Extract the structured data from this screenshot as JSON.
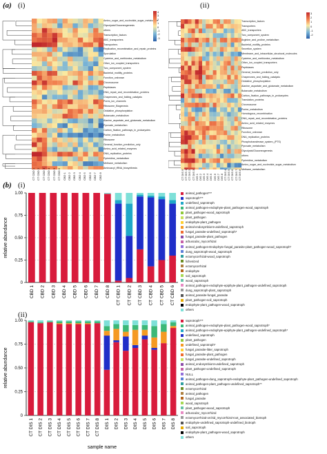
{
  "figure": {
    "label_a": "(a)",
    "label_b": "(b)",
    "sub_i": "(i)",
    "sub_ii": "(ii)"
  },
  "heatmap_i": {
    "rows": [
      "Amino_sugar_and_nucleotide_sugar_metabolism",
      "Glycolysis/Gluconeogenesis",
      "others",
      "Transcription_factors",
      "ABC_transporters",
      "Transporters",
      "Replication_recombination_and_repair_proteins",
      "Sporulation",
      "Cysteine_and_methionine_metabolism",
      "Other_ion_coupled_transporters",
      "Two_component_system",
      "Bacterial_motility_proteins",
      "Function_unknown",
      "Chromosome",
      "Peptidases",
      "DNA_repair_and_recombination_proteins",
      "Chaperones_and_folding_catalysis",
      "Pores_ion_channels",
      "Ribosome_Biogenesis",
      "Oxidative_phosphorylation",
      "Butanoate_metabolism",
      "Alanine_aspartate_and_glutamate_metabolism",
      "Pyruvate_metabolism",
      "Carbon_fixation_pathways_in_prokaryotes",
      "Purine_metabolism",
      "Ribosome",
      "General_function_prediction_only",
      "Amino_acid_related_enzymes",
      "DNA_replication_proteins",
      "Pyrimidine_metabolism",
      "Methane_metabolism",
      "Aminoacyl_tRNA_biosynthesis"
    ],
    "cols": [
      "CT CBD 1",
      "CT CBD 2",
      "CT CBD 3",
      "CT CBD 4",
      "CT CBD 5",
      "CT CBD 6",
      "CBD 1",
      "CBD 2",
      "CBD 3",
      "CBD 4",
      "CBD 5",
      "CBD 6",
      "CBD 7",
      "CBD 8"
    ],
    "legend_ticks": [
      "4",
      "3",
      "2",
      "1",
      "0",
      "-1",
      "-2",
      "-3"
    ]
  },
  "heatmap_ii": {
    "rows": [
      "Transcription_factors",
      "Transporters",
      "ABC_transporters",
      "Two_component_system",
      "Arginine_and_proline_metabolism",
      "Bacterial_motility_proteins",
      "Secretion_system",
      "Membrane_and_intracellular_structural_molecules",
      "Cysteine_and_methionine_metabolism",
      "Other_ion_coupled_transporters",
      "Peptidases",
      "General_function_prediction_only",
      "Chaperones_and_folding_catalysis",
      "Oxidative_phosphorylation",
      "Alanine_aspartate_and_glutamate_metabolism",
      "Butanoate_metabolism",
      "Carbon_fixation_pathways_in_prokaryotes",
      "Translation_proteins",
      "Chromosome",
      "Purine_metabolism",
      "Homologous_recombination",
      "DNA_repair_and_recombination_proteins",
      "Amino_acid_related_enzymes",
      "Ribosome",
      "Function_unknown",
      "DNA_replication_proteins",
      "Phosphotransferase_system_(PTS)",
      "Pyruvate_metabolism",
      "Glycolysis/Gluconeogenesis",
      "others",
      "Pyrimidine_metabolism",
      "Amino_sugar_and_nucleotide_sugar_metabolism",
      "Methane_metabolism"
    ],
    "cols": [
      "CT DIS 9",
      "CT DIS 1",
      "CT DIS 2",
      "CT DIS 3",
      "DIS 1",
      "DIS 2",
      "DIS 3",
      "DIS 4",
      "DIS 5",
      "DIS 6",
      "DIS 7",
      "DIS 8",
      "CT DIS 4",
      "CT DIS 5",
      "CT DIS 6",
      "CT DIS 7",
      "CT DIS 8"
    ],
    "legend_ticks": [
      "3",
      "2",
      "1",
      "0",
      "-1",
      "-2"
    ]
  },
  "chart_data": [
    {
      "type": "bar",
      "panel": "(i)",
      "ylabel": "relative abundance",
      "ylim": [
        0,
        1.0
      ],
      "yticks": [
        "0",
        "0.25",
        "0.50",
        "0.75",
        "1.00"
      ],
      "categories": [
        "CBD 1",
        "CBD 2",
        "CBD 3",
        "CBD 4",
        "CBD 5",
        "CBD 6",
        "CBD 7",
        "CBD 8",
        "CT CBD 1",
        "CT CBD 2",
        "CT CBD 3",
        "CT CBD 4",
        "CT CBD 5",
        "CT CBD 6"
      ],
      "legend": [
        "animal_pathogen***",
        "saprotroph***",
        "undefined_saprotroph",
        "animal_pathogen-endophyte-plant_pathogen-wood_saprotroph",
        "plant_pathogen-wood_saprotroph",
        "plant_pathogen",
        "endophyte-plant_pathogen",
        "animal-endosymbiont-undefined_saprotroph",
        "fungal_parasite-undefined_saprotroph*",
        "fungal_parasite-plant_pathogen",
        "arbuscular_mycorrhizal",
        "animal_pathogen-Endophyte-fungal_parasite-plant_pathogen-wood_saprotroph*",
        "dung_saprotroph-wood_saprotroph",
        "ectomycorrhizal-wood_saprotroph",
        "lichenized",
        "ectomycorrhizal",
        "endophyte",
        "soil_saprotroph",
        "wood_saprotroph",
        "animal_pathogen-endophyte-epiphyte-plant_pathogen-undefined_saprotroph",
        "dung_saprotroph-plant_saprotroph",
        "animal_parasite-fungal_parasite",
        "plant_pathogen-soil_saprotroph",
        "endophyte-plant_pathogen-wood_saprotroph",
        "others"
      ],
      "colors": [
        "#d81b3c",
        "#1f2ec8",
        "#1fa8c8",
        "#3cb878",
        "#8fc93a",
        "#c7e05a",
        "#ffcf2e",
        "#f59a23",
        "#ef6c2f",
        "#8b4ba8",
        "#c65fa8",
        "#9370db",
        "#5c7fd9",
        "#2e9e9e",
        "#6b8e23",
        "#ad7f3f",
        "#b5651d",
        "#a6d854",
        "#66c2a5",
        "#e78ac3",
        "#999999",
        "#555555",
        "#e6ab02",
        "#000000",
        "#7ee0d8"
      ],
      "series": [
        {
          "name": "animal_pathogen***",
          "values": [
            1,
            1,
            1,
            1,
            1,
            1,
            1,
            0.99,
            0.02,
            0.05,
            0.37,
            0.18,
            0.25,
            0.3
          ]
        },
        {
          "name": "saprotroph***",
          "values": [
            0,
            0,
            0,
            0,
            0,
            0,
            0,
            0,
            0.86,
            0.47,
            0.59,
            0.77,
            0.68,
            0.58
          ]
        },
        {
          "name": "undefined_saprotroph",
          "values": [
            0,
            0,
            0,
            0,
            0,
            0,
            0,
            0,
            0.04,
            0.36,
            0.02,
            0.02,
            0.03,
            0.04
          ]
        },
        {
          "name": "others",
          "values": [
            0,
            0,
            0,
            0,
            0,
            0,
            0,
            0.01,
            0.08,
            0.12,
            0.02,
            0.03,
            0.04,
            0.08
          ]
        }
      ]
    },
    {
      "type": "bar",
      "panel": "(ii)",
      "ylabel": "relative abundance",
      "xlabel": "sample name",
      "ylim": [
        0,
        1.0
      ],
      "yticks": [
        "0",
        "0.25",
        "0.50",
        "0.75",
        "1.00"
      ],
      "categories": [
        "CT DIS 1",
        "CT DIS 2",
        "CT DIS 3",
        "CT DIS 4",
        "CT DIS 5",
        "CT DIS 6",
        "CT DIS 7",
        "CT DIS 8",
        "DIS 1",
        "DIS 2",
        "DIS 3",
        "DIS 4",
        "DIS 5",
        "DIS 6",
        "DIS 7",
        "DIS 8"
      ],
      "legend": [
        "saprotroph***",
        "animal_pathogen-endophyte-plant_pathogen-wood_saprotroph*",
        "animal_pathogen-endophyte-epiphyte-plant_pathogen-undefined_saprotroph*",
        "undefined_saprotroph",
        "plant_pathogen",
        "undefined_saprotroph*",
        "fungal_parasite-litter_saprotroph",
        "fungal_parasite-plant_pathogen",
        "fungal_parasite-undefined_saprotroph",
        "animal_endosymbiont-undefined_saprotroph",
        "plant_pathogen-undefined_saprotroph",
        "NULL",
        "animal_pathogen-dung_saprotroph-endophyte-plant_pathogen-undefined_saprotroph",
        "animal_pathogen-plant_pathogen-undefined_saprotroph**",
        "ectomycorrhizal",
        "animal_pathogen",
        "fungal_parasite",
        "wood_saprotroph",
        "plant_pathogen-wood_saprotroph",
        "arbuscular_mycorrhizal",
        "ectomycorrhizal-orchid_mycorrhizal-root_associated_biotroph",
        "endophyte-undefined_saprotroph-undefined_biotroph",
        "soil_saprotroph",
        "endophyte-plant_pathogen-wood_saprotroph",
        "others"
      ],
      "colors": [
        "#d81b3c",
        "#3cb878",
        "#1fa8c8",
        "#1f2ec8",
        "#8fc93a",
        "#f59a23",
        "#ffcf2e",
        "#ef6c2f",
        "#c7e05a",
        "#8b4ba8",
        "#c65fa8",
        "#9370db",
        "#5c7fd9",
        "#2e9e9e",
        "#6b8e23",
        "#ad7f3f",
        "#b5651d",
        "#a6d854",
        "#66c2a5",
        "#e78ac3",
        "#999999",
        "#555555",
        "#e6ab02",
        "#000000",
        "#7ee0d8"
      ],
      "series": [
        {
          "name": "saprotroph***",
          "values": [
            0.98,
            0.97,
            0.98,
            0.96,
            0.96,
            0.96,
            0.96,
            0.97,
            0.48,
            0.77,
            0.68,
            0.71,
            0.8,
            0.69,
            0.76,
            0.92
          ]
        },
        {
          "name": "undefined_saprotroph",
          "values": [
            0,
            0,
            0,
            0,
            0,
            0,
            0,
            0,
            0.36,
            0.02,
            0.15,
            0.03,
            0.04,
            0.02,
            0,
            0
          ]
        },
        {
          "name": "undefined_saprotroph*",
          "values": [
            0,
            0,
            0,
            0.01,
            0.01,
            0.01,
            0.01,
            0,
            0.05,
            0.12,
            0.05,
            0.16,
            0.06,
            0.11,
            0.12,
            0.02
          ]
        },
        {
          "name": "animal_pathogen-endophyte-plant_pathogen-wood_saprotroph*",
          "values": [
            0.01,
            0.01,
            0.01,
            0.02,
            0.02,
            0.02,
            0.02,
            0.02,
            0.05,
            0.05,
            0.07,
            0.05,
            0.05,
            0.12,
            0.08,
            0.04
          ]
        },
        {
          "name": "others",
          "values": [
            0.01,
            0.02,
            0.01,
            0.01,
            0.01,
            0.01,
            0.01,
            0.01,
            0.06,
            0.04,
            0.05,
            0.05,
            0.05,
            0.06,
            0.04,
            0.02
          ]
        }
      ]
    }
  ]
}
